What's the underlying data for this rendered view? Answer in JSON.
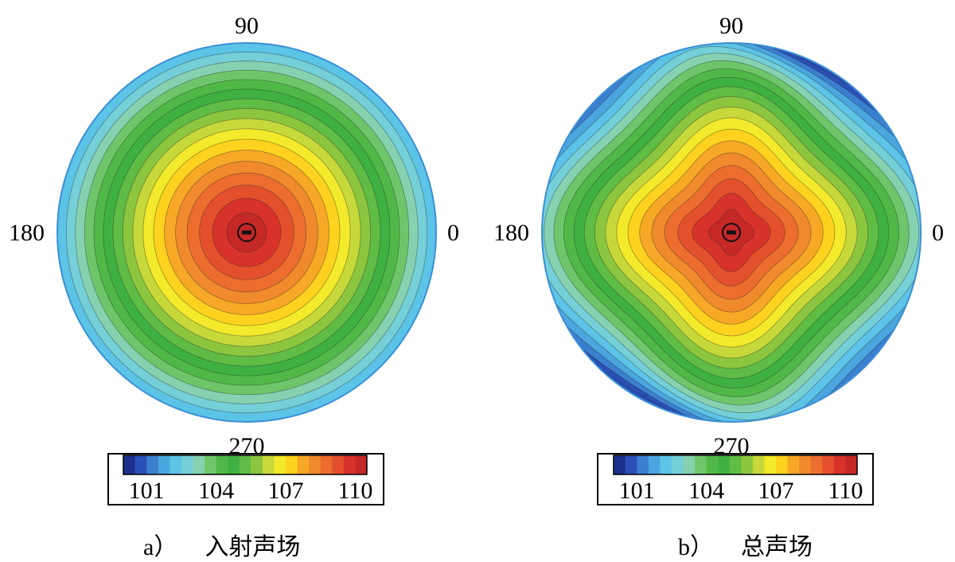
{
  "chart_data": [
    {
      "type": "heatmap",
      "subtype": "polar-contour",
      "caption_letter": "a）",
      "caption_title": "入射声场",
      "angle_labels": [
        "0",
        "90",
        "180",
        "270"
      ],
      "colorbar_ticks": [
        "101",
        "104",
        "107",
        "110"
      ],
      "colorbar_range": [
        100,
        110.5
      ],
      "center_value": 110.5,
      "edge_value": 102,
      "levels": [
        101,
        101.5,
        102,
        102.5,
        103,
        103.5,
        104,
        104.5,
        105,
        105.5,
        106,
        106.5,
        107,
        107.5,
        108,
        108.5,
        109,
        109.5,
        110,
        110.5
      ],
      "pattern": "axisymmetric"
    },
    {
      "type": "heatmap",
      "subtype": "polar-contour",
      "caption_letter": "b）",
      "caption_title": "总声场",
      "angle_labels": [
        "0",
        "90",
        "180",
        "270"
      ],
      "colorbar_ticks": [
        "101",
        "104",
        "107",
        "110"
      ],
      "colorbar_range": [
        100,
        110.5
      ],
      "center_value": 110.5,
      "edge_value": 102,
      "min_value": 100.5,
      "levels": [
        101,
        101.5,
        102,
        102.5,
        103,
        103.5,
        104,
        104.5,
        105,
        105.5,
        106,
        106.5,
        107,
        107.5,
        108,
        108.5,
        109,
        109.5,
        110,
        110.5
      ],
      "pattern": "four-lobed"
    }
  ],
  "colors": {
    "colormap": [
      "#1c2f8c",
      "#2a4fb6",
      "#3b7fd0",
      "#4aa6de",
      "#5cc4e6",
      "#74cfd8",
      "#86d1b0",
      "#6fc66a",
      "#50b847",
      "#3fb142",
      "#5fbc45",
      "#8cc63f",
      "#c7d93a",
      "#f2ea2a",
      "#ffd21f",
      "#f7a826",
      "#f08a2c",
      "#ec6d2e",
      "#e4502c",
      "#d8322a",
      "#c62828"
    ]
  }
}
